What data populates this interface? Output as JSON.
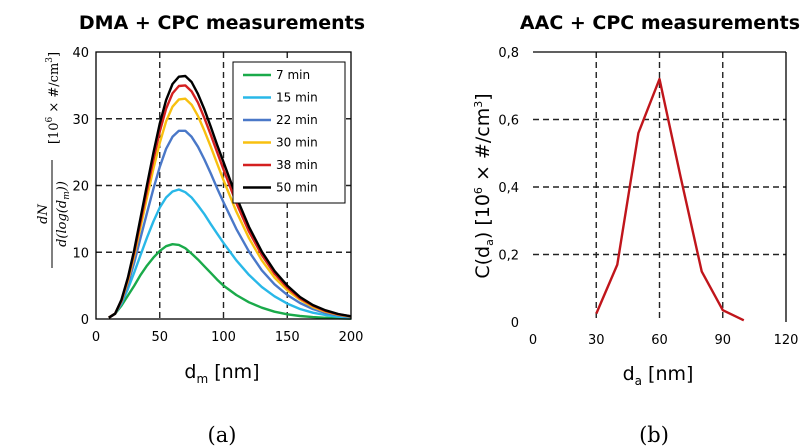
{
  "chart_data": [
    {
      "type": "line",
      "title": "DMA + CPC measurements",
      "xlabel": "d_m [nm]",
      "ylabel": "dN/d(log(d_m)) [10^6 × #/cm³]",
      "xlim": [
        0,
        200
      ],
      "ylim": [
        0,
        40
      ],
      "xticks": [
        0,
        50,
        100,
        150,
        200
      ],
      "yticks": [
        0,
        10,
        20,
        30,
        40
      ],
      "grid": "dashed at x=50,100,150 and y=10,20,30",
      "legend_placement": "top-right",
      "x": [
        10,
        15,
        20,
        25,
        30,
        35,
        40,
        45,
        50,
        55,
        60,
        65,
        70,
        75,
        80,
        85,
        90,
        95,
        100,
        110,
        120,
        130,
        140,
        150,
        160,
        170,
        180,
        190,
        200
      ],
      "series": [
        {
          "name": "7 min",
          "color": "#1aaa4a",
          "values": [
            0.2,
            0.8,
            2.0,
            3.5,
            5.0,
            6.6,
            8.0,
            9.2,
            10.2,
            10.9,
            11.2,
            11.1,
            10.6,
            9.8,
            8.9,
            7.9,
            6.9,
            5.9,
            5.0,
            3.6,
            2.5,
            1.7,
            1.1,
            0.7,
            0.45,
            0.28,
            0.18,
            0.1,
            0.05
          ]
        },
        {
          "name": "15 min",
          "color": "#29b8e8",
          "values": [
            0.2,
            0.8,
            2.3,
            4.5,
            7.0,
            9.6,
            12.2,
            14.6,
            16.7,
            18.2,
            19.1,
            19.4,
            19.0,
            18.2,
            17.0,
            15.7,
            14.2,
            12.8,
            11.4,
            8.8,
            6.6,
            4.8,
            3.4,
            2.3,
            1.5,
            0.95,
            0.6,
            0.35,
            0.2
          ]
        },
        {
          "name": "22 min",
          "color": "#4a78c8",
          "values": [
            0.2,
            0.8,
            2.5,
            5.2,
            8.5,
            12.2,
            15.9,
            19.5,
            22.8,
            25.5,
            27.3,
            28.2,
            28.2,
            27.3,
            25.8,
            23.9,
            21.8,
            19.6,
            17.5,
            13.5,
            10.1,
            7.3,
            5.2,
            3.6,
            2.4,
            1.5,
            0.9,
            0.55,
            0.3
          ]
        },
        {
          "name": "30 min",
          "color": "#f8c010",
          "values": [
            0.2,
            0.8,
            2.7,
            5.7,
            9.5,
            13.8,
            18.2,
            22.5,
            26.4,
            29.6,
            31.8,
            32.9,
            33.0,
            32.1,
            30.4,
            28.2,
            25.8,
            23.3,
            20.8,
            16.1,
            12.1,
            8.8,
            6.2,
            4.3,
            2.9,
            1.8,
            1.1,
            0.65,
            0.35
          ]
        },
        {
          "name": "38 min",
          "color": "#d42020",
          "values": [
            0.2,
            0.8,
            2.8,
            6.0,
            10.0,
            14.6,
            19.3,
            23.9,
            28.1,
            31.5,
            33.8,
            34.9,
            35.0,
            34.1,
            32.4,
            30.1,
            27.6,
            25.0,
            22.4,
            17.4,
            13.1,
            9.6,
            6.8,
            4.7,
            3.1,
            2.0,
            1.2,
            0.7,
            0.4
          ]
        },
        {
          "name": "50 min",
          "color": "#000000",
          "values": [
            0.2,
            0.8,
            2.9,
            6.2,
            10.4,
            15.2,
            20.1,
            24.9,
            29.3,
            32.8,
            35.2,
            36.3,
            36.4,
            35.5,
            33.7,
            31.4,
            28.8,
            26.1,
            23.5,
            18.3,
            13.8,
            10.1,
            7.2,
            5.0,
            3.3,
            2.1,
            1.3,
            0.75,
            0.4
          ]
        }
      ]
    },
    {
      "type": "line",
      "title": "AAC + CPC measurements",
      "xlabel": "d_a [nm]",
      "ylabel": "C(d_a) [10^6 × #/cm³]",
      "xlim": [
        0,
        120
      ],
      "ylim": [
        0,
        0.8
      ],
      "xticks": [
        0,
        30,
        60,
        90,
        120
      ],
      "yticks": [
        "0",
        "0,2",
        "0,4",
        "0,6",
        "0,8"
      ],
      "grid": "dashed at x=30,60,90 and y=0.2,0.4,0.6",
      "x": [
        30,
        40,
        50,
        60,
        70,
        80,
        90,
        100
      ],
      "series": [
        {
          "color": "#c0151b",
          "values": [
            0.025,
            0.17,
            0.56,
            0.72,
            0.43,
            0.15,
            0.035,
            0.005
          ]
        }
      ]
    }
  ],
  "labels": {
    "panel_a": "(a)",
    "panel_b": "(b)"
  }
}
